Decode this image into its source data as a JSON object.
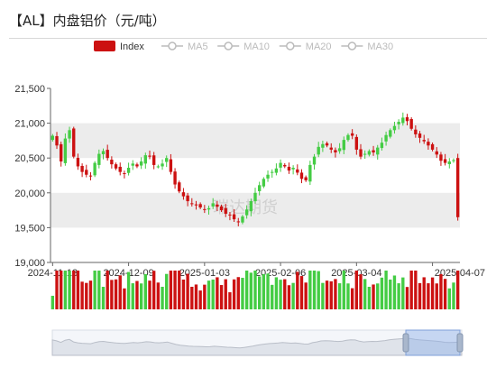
{
  "title": "【AL】内盘铝价（元/吨）",
  "watermark": "瑞达期货",
  "colors": {
    "up": "#44cc44",
    "down": "#cc1111",
    "band": "#ececec",
    "legend_inactive": "#bbbbbb"
  },
  "legend": [
    {
      "label": "Index",
      "active": true
    },
    {
      "label": "MA5",
      "active": false
    },
    {
      "label": "MA10",
      "active": false
    },
    {
      "label": "MA20",
      "active": false
    },
    {
      "label": "MA30",
      "active": false
    }
  ],
  "chart_data": {
    "type": "candlestick",
    "ylim": [
      19000,
      21500
    ],
    "yticks": [
      19000,
      19500,
      20000,
      20500,
      21000,
      21500
    ],
    "ytick_labels": [
      "19,000",
      "19,500",
      "20,000",
      "20,500",
      "21,000",
      "21,500"
    ],
    "xtick_labels": [
      "2024-11-13",
      "2024-12-09",
      "2025-01-03",
      "2025-02-06",
      "2025-03-04",
      "2025-04-07"
    ],
    "xtick_index": [
      0,
      18,
      36,
      54,
      72,
      90
    ],
    "series": [
      {
        "closes": [
          20820,
          20680,
          20450,
          20780,
          20900,
          20520,
          20380,
          20300,
          20260,
          20240,
          20430,
          20560,
          20600,
          20500,
          20410,
          20350,
          20300,
          20280,
          20360,
          20420,
          20380,
          20450,
          20540,
          20520,
          20400,
          20380,
          20420,
          20500,
          20300,
          20120,
          20020,
          19950,
          19880,
          19840,
          19820,
          19790,
          19760,
          19780,
          19850,
          19800,
          19750,
          19700,
          19680,
          19620,
          19580,
          19660,
          19760,
          19880,
          20000,
          20110,
          20200,
          20260,
          20300,
          20350,
          20430,
          20380,
          20320,
          20360,
          20290,
          20200,
          20180,
          20400,
          20520,
          20660,
          20700,
          20680,
          20620,
          20580,
          20640,
          20760,
          20830,
          20820,
          20620,
          20520,
          20560,
          20600,
          20580,
          20650,
          20720,
          20830,
          20900,
          20960,
          21020,
          21080,
          21030,
          20920,
          20840,
          20790,
          20740,
          20680,
          20620,
          20550,
          20460,
          20430,
          20450,
          20470,
          19650
        ]
      }
    ]
  }
}
